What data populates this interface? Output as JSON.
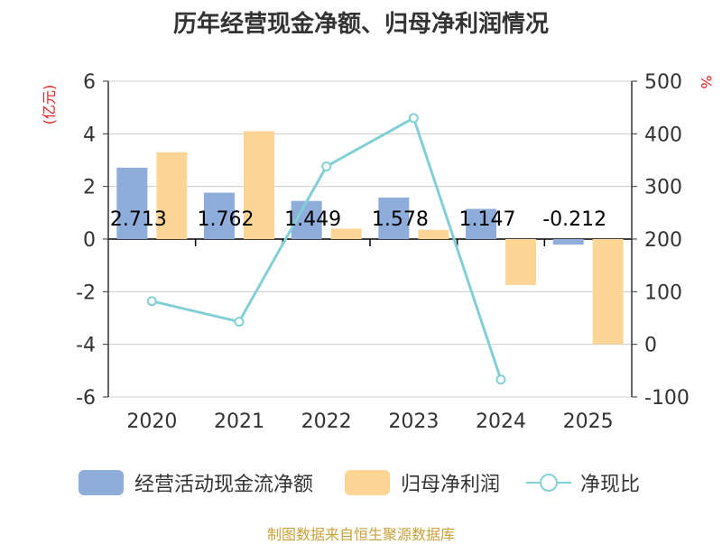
{
  "title": "历年经营现金净额、归母净利润情况",
  "source_note": "制图数据来自恒生聚源数据库",
  "chart_data": {
    "type": "bar",
    "categories": [
      "2020",
      "2021",
      "2022",
      "2023",
      "2024",
      "2025"
    ],
    "left_axis": {
      "unit_label": "(亿元)",
      "min": -6,
      "max": 6,
      "ticks": [
        -6,
        -4,
        -2,
        0,
        2,
        4,
        6
      ]
    },
    "right_axis": {
      "unit_label": "%",
      "min": -100,
      "max": 500,
      "ticks": [
        -100,
        0,
        100,
        200,
        300,
        400,
        500
      ]
    },
    "series": [
      {
        "name": "经营活动现金流净额",
        "kind": "bar",
        "axis": "left",
        "color": "#8eaddb",
        "values": [
          2.713,
          1.762,
          1.449,
          1.578,
          1.147,
          -0.212
        ],
        "labels": [
          "2.713",
          "1.762",
          "1.449",
          "1.578",
          "1.147",
          "-0.212"
        ]
      },
      {
        "name": "归母净利润",
        "kind": "bar",
        "axis": "left",
        "color": "#fdd594",
        "values": [
          3.3,
          4.1,
          0.4,
          0.35,
          -1.75,
          -4.0
        ]
      },
      {
        "name": "净现比",
        "kind": "line",
        "axis": "right",
        "color": "#82cfd6",
        "values": [
          82,
          43,
          338,
          430,
          -67,
          null
        ]
      }
    ],
    "grid": true,
    "legend_position": "bottom"
  }
}
